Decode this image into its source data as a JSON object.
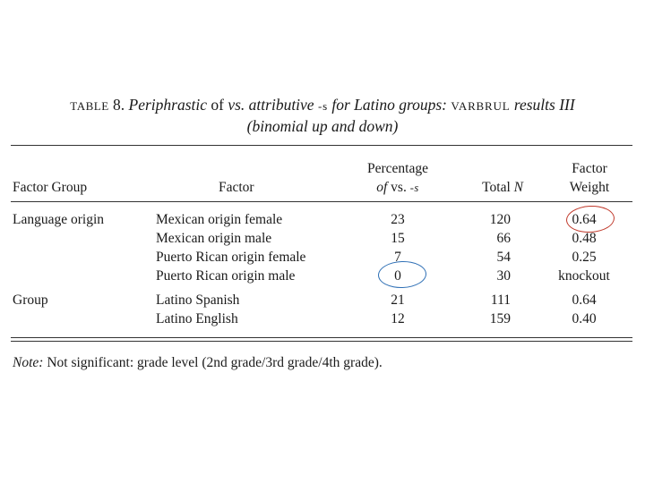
{
  "caption": {
    "label_prefix": "TABLE",
    "label_number": "8.",
    "title_line1_a": "Periphrastic",
    "title_line1_b": " of ",
    "title_line1_c": "vs. attributive ",
    "title_line1_d": "-s",
    "title_line1_e": " for Latino groups: ",
    "title_line1_f": "varbrul",
    "title_line1_g": " results III",
    "title_line2": "(binomial up and down)"
  },
  "header": {
    "factor_group": "Factor Group",
    "factor": "Factor",
    "percentage_line1": "Percentage",
    "percentage_line2_a": "of",
    "percentage_line2_b": " vs. ",
    "percentage_line2_c": "-s",
    "total_a": "Total ",
    "total_b": "N",
    "weight_line1": "Factor",
    "weight_line2": "Weight"
  },
  "rows": [
    {
      "group": "Language origin",
      "factor": "Mexican origin female",
      "pct": "23",
      "total": "120",
      "weight": "0.64"
    },
    {
      "group": "",
      "factor": "Mexican origin male",
      "pct": "15",
      "total": "66",
      "weight": "0.48"
    },
    {
      "group": "",
      "factor": "Puerto Rican origin female",
      "pct": "7",
      "total": "54",
      "weight": "0.25"
    },
    {
      "group": "",
      "factor": "Puerto Rican origin male",
      "pct": "0",
      "total": "30",
      "weight": "knockout"
    },
    {
      "group": "Group",
      "factor": "Latino Spanish",
      "pct": "21",
      "total": "111",
      "weight": "0.64"
    },
    {
      "group": "",
      "factor": "Latino English",
      "pct": "12",
      "total": "159",
      "weight": "0.40"
    }
  ],
  "note": {
    "label": "Note:",
    "text": " Not significant: grade level (2nd grade/3rd grade/4th grade)."
  },
  "annotations": {
    "red_circle_color": "#c0392b",
    "blue_circle_color": "#2e6fb5"
  }
}
